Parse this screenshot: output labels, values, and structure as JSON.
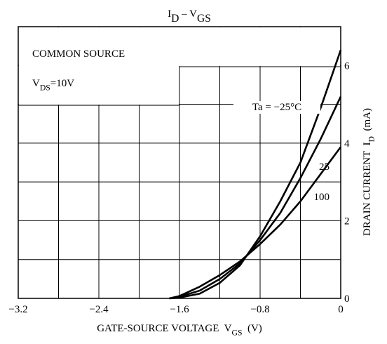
{
  "chart_data": {
    "type": "line",
    "title": [
      {
        "text": "I"
      },
      {
        "text": "D",
        "sub": true
      },
      {
        "text": " – "
      },
      {
        "text": "V"
      },
      {
        "text": "GS",
        "sub": true
      }
    ],
    "x_label": [
      {
        "text": "GATE-SOURCE VOLTAGE  V"
      },
      {
        "text": "GS",
        "sub": true
      },
      {
        "text": "  (V)"
      }
    ],
    "y_label": [
      {
        "text": "DRAIN CURRENT  I"
      },
      {
        "text": "D",
        "sub": true
      },
      {
        "text": "  (mA)"
      }
    ],
    "annotations": [
      [
        {
          "text": "COMMON SOURCE"
        }
      ],
      [
        {
          "text": "V"
        },
        {
          "text": "DS",
          "sub": true
        },
        {
          "text": "=10V"
        }
      ]
    ],
    "x": [
      -1.7,
      -1.6,
      -1.4,
      -1.2,
      -1.0,
      -0.8,
      -0.6,
      -0.4,
      -0.2,
      0
    ],
    "series": [
      {
        "name": "Ta = −25°C",
        "color": "#000000",
        "values": [
          0,
          0.02,
          0.12,
          0.4,
          0.85,
          1.6,
          2.5,
          3.5,
          4.9,
          6.4
        ]
      },
      {
        "name": "25",
        "color": "#000000",
        "values": [
          0,
          0.04,
          0.2,
          0.5,
          0.9,
          1.5,
          2.2,
          3.1,
          4.1,
          5.2
        ]
      },
      {
        "name": "100",
        "color": "#000000",
        "values": [
          0,
          0.06,
          0.3,
          0.6,
          0.95,
          1.4,
          1.9,
          2.5,
          3.2,
          3.9
        ]
      }
    ],
    "xlim": [
      -3.2,
      0
    ],
    "xticks": [
      {
        "value": -3.2,
        "label": "−3.2"
      },
      {
        "value": -2.8,
        "label": ""
      },
      {
        "value": -2.4,
        "label": "−2.4"
      },
      {
        "value": -2.0,
        "label": ""
      },
      {
        "value": -1.6,
        "label": "−1.6"
      },
      {
        "value": -1.2,
        "label": ""
      },
      {
        "value": -0.8,
        "label": "−0.8"
      },
      {
        "value": -0.4,
        "label": ""
      },
      0
    ],
    "ylim": [
      0,
      7
    ],
    "yticks": [
      0,
      {
        "value": 1,
        "label": ""
      },
      2,
      {
        "value": 3,
        "label": ""
      },
      4,
      {
        "value": 5,
        "label": ""
      },
      6
    ],
    "grid": true
  }
}
